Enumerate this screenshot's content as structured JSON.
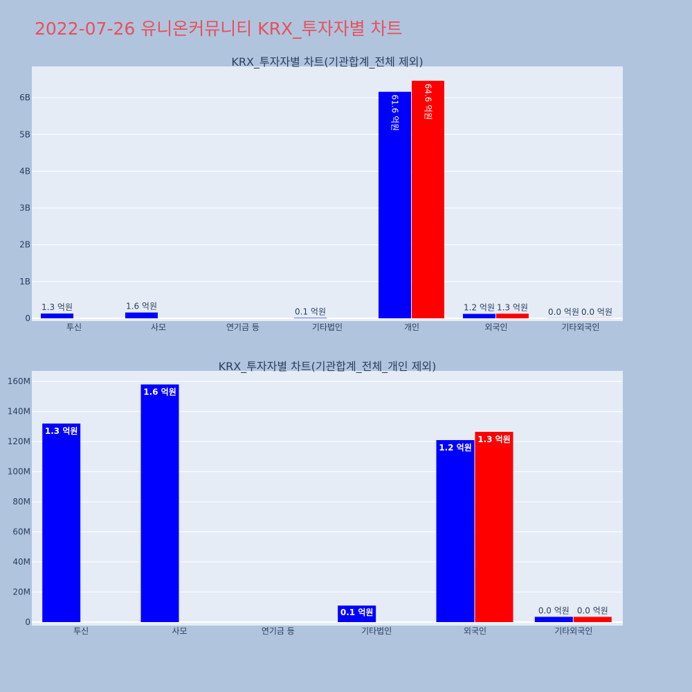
{
  "title": "2022-07-26 유니온커뮤니티 KRX_투자자별 차트",
  "colors": {
    "buy": "#0000ff",
    "sell": "#ff0000",
    "plot_bg": "#e5ecf6",
    "page_bg": "#b0c4de",
    "title": "#e8505b"
  },
  "chart_data": [
    {
      "type": "bar",
      "title": "KRX_투자자별 차트(기관합계_전체 제외)",
      "categories": [
        "투신",
        "사모",
        "연기금 등",
        "기타법인",
        "개인",
        "외국인",
        "기타외국인"
      ],
      "y_ticks": [
        "0",
        "1B",
        "2B",
        "3B",
        "4B",
        "5B",
        "6B"
      ],
      "y_tick_values": [
        0,
        1000000000,
        2000000000,
        3000000000,
        4000000000,
        5000000000,
        6000000000
      ],
      "ylim": [
        0,
        6850000000
      ],
      "series": [
        {
          "color": "#0000ff",
          "values": [
            130000000,
            158000000,
            null,
            11000000,
            6160000000,
            121000000,
            3000000
          ],
          "labels": [
            "1.3 억원",
            "1.6 억원",
            "",
            "0.1 억원",
            "61.6 억원",
            "1.2 억원",
            "0.0 억원"
          ]
        },
        {
          "color": "#ff0000",
          "values": [
            null,
            null,
            null,
            null,
            6460000000,
            126000000,
            3000000
          ],
          "labels": [
            "",
            "",
            "",
            "",
            "64.6 억원",
            "1.3 억원",
            "0.0 억원"
          ]
        }
      ]
    },
    {
      "type": "bar",
      "title": "KRX_투자자별 차트(기관합계_전체_개인 제외)",
      "categories": [
        "투신",
        "사모",
        "연기금 등",
        "기타법인",
        "외국인",
        "기타외국인"
      ],
      "y_ticks": [
        "0",
        "20M",
        "40M",
        "60M",
        "80M",
        "100M",
        "120M",
        "140M",
        "160M"
      ],
      "y_tick_values": [
        0,
        20000000,
        40000000,
        60000000,
        80000000,
        100000000,
        120000000,
        140000000,
        160000000
      ],
      "ylim": [
        0,
        167000000
      ],
      "series": [
        {
          "color": "#0000ff",
          "values": [
            132000000,
            158000000,
            null,
            11000000,
            121000000,
            3500000
          ],
          "labels": [
            "1.3 억원",
            "1.6 억원",
            "",
            "0.1 억원",
            "1.2 억원",
            "0.0 억원"
          ]
        },
        {
          "color": "#ff0000",
          "values": [
            null,
            null,
            null,
            null,
            126500000,
            3500000
          ],
          "labels": [
            "",
            "",
            "",
            "",
            "1.3 억원",
            "0.0 억원"
          ]
        }
      ]
    }
  ]
}
